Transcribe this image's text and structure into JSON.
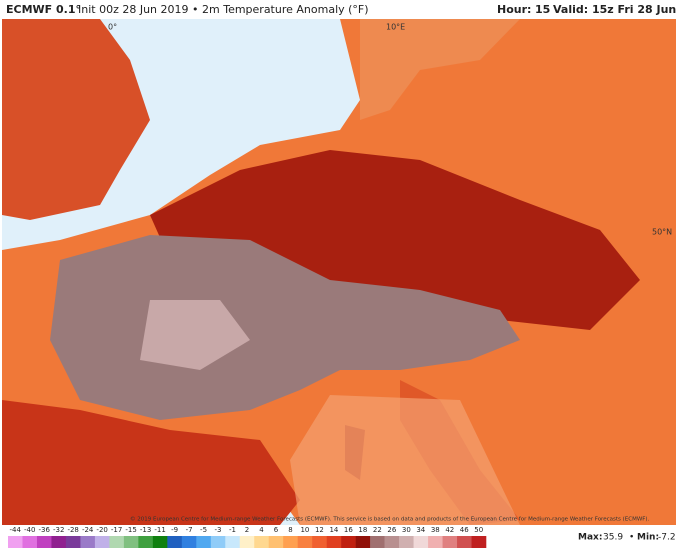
{
  "header": {
    "model": "ECMWF 0.1°",
    "title": "Init 00z 28 Jun 2019 • 2m Temperature Anomaly (°F)",
    "hour_label": "Hour:",
    "hour": 15,
    "valid": "Valid: 15z Fri 28 Jun 2019"
  },
  "map": {
    "labels": [
      "0°",
      "10°E",
      "50°N"
    ],
    "credit": "© 2019 European Centre for Medium-range Weather Forecasts (ECMWF). This service is based on data and products of the European Centre for Medium-range Weather Forecasts (ECMWF)."
  },
  "colorbar": {
    "ticks": [
      -44,
      -40,
      -36,
      -32,
      -28,
      -24,
      -20,
      -17,
      -15,
      -13,
      -11,
      -9,
      -7,
      -5,
      -3,
      -1,
      2,
      4,
      6,
      8,
      10,
      12,
      14,
      16,
      18,
      22,
      26,
      30,
      34,
      38,
      42,
      46,
      50
    ],
    "colors": [
      "#f0a0f0",
      "#e070e0",
      "#c040c0",
      "#902090",
      "#7a3a9a",
      "#9a7ac8",
      "#c0b0e8",
      "#b0d8b0",
      "#80c080",
      "#40a040",
      "#108010",
      "#2060c0",
      "#3080e0",
      "#50a8f0",
      "#90ccf8",
      "#c8e8fc",
      "#fff0c8",
      "#ffd890",
      "#ffc070",
      "#ffa050",
      "#f88040",
      "#f06030",
      "#e04020",
      "#c02010",
      "#901008",
      "#a07070",
      "#b89090",
      "#d0b0b0",
      "#f0d8d8",
      "#f0b0b0",
      "#e08080",
      "#d05050",
      "#c02020"
    ]
  },
  "stats": {
    "max_label": "Max:",
    "max": 35.9,
    "min_label": "Min:",
    "min": -7.2
  }
}
